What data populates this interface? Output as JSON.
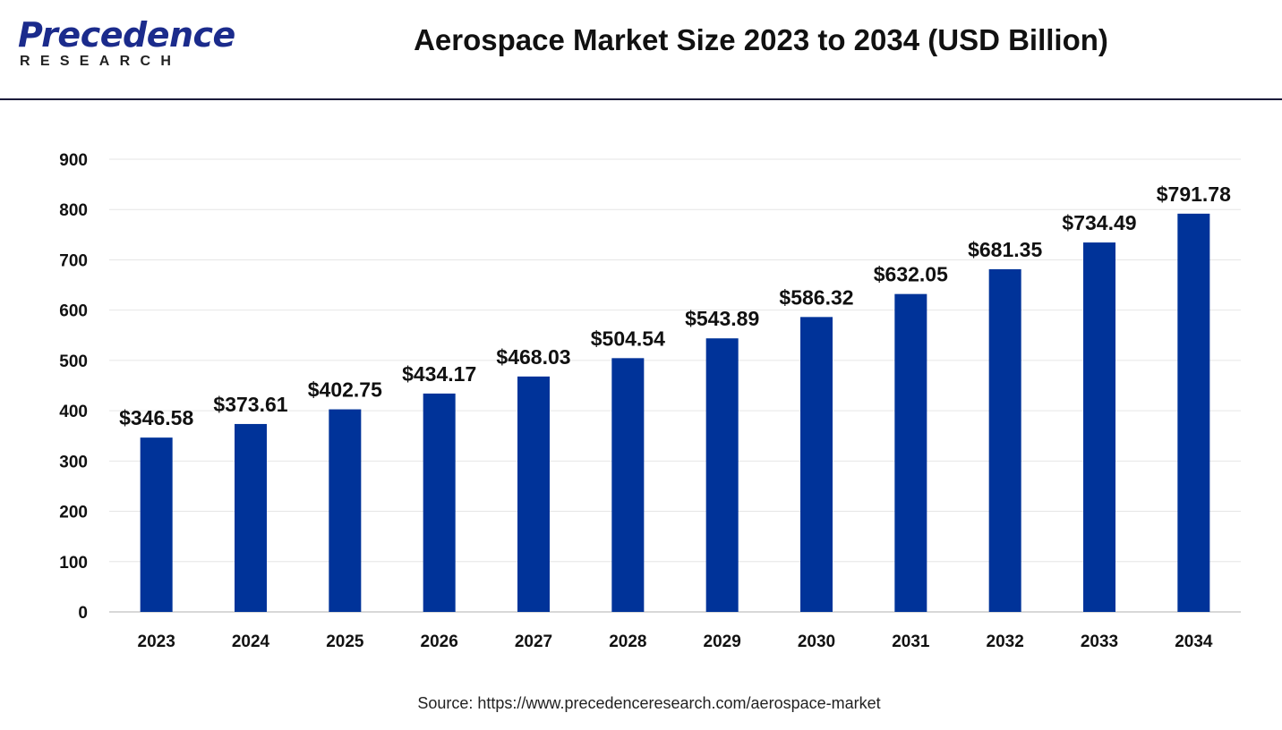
{
  "logo": {
    "brand": "Precedence",
    "sub": "RESEARCH"
  },
  "colors": {
    "bar": "#003399",
    "brand": "#1b2b8c",
    "grid": "#e6e6e6",
    "axis": "#cccccc"
  },
  "chart_data": {
    "type": "bar",
    "title": "Aerospace Market Size 2023 to 2034 (USD Billion)",
    "categories": [
      "2023",
      "2024",
      "2025",
      "2026",
      "2027",
      "2028",
      "2029",
      "2030",
      "2031",
      "2032",
      "2033",
      "2034"
    ],
    "values": [
      346.58,
      373.61,
      402.75,
      434.17,
      468.03,
      504.54,
      543.89,
      586.32,
      632.05,
      681.35,
      734.49,
      791.78
    ],
    "labels": [
      "$346.58",
      "$373.61",
      "$402.75",
      "$434.17",
      "$468.03",
      "$504.54",
      "$543.89",
      "$586.32",
      "$632.05",
      "$681.35",
      "$734.49",
      "$791.78"
    ],
    "yticks": [
      0,
      100,
      200,
      300,
      400,
      500,
      600,
      700,
      800,
      900
    ],
    "ylim": [
      0,
      900
    ],
    "xlabel": "",
    "ylabel": "",
    "grid": true
  },
  "source": "Source: https://www.precedenceresearch.com/aerospace-market"
}
